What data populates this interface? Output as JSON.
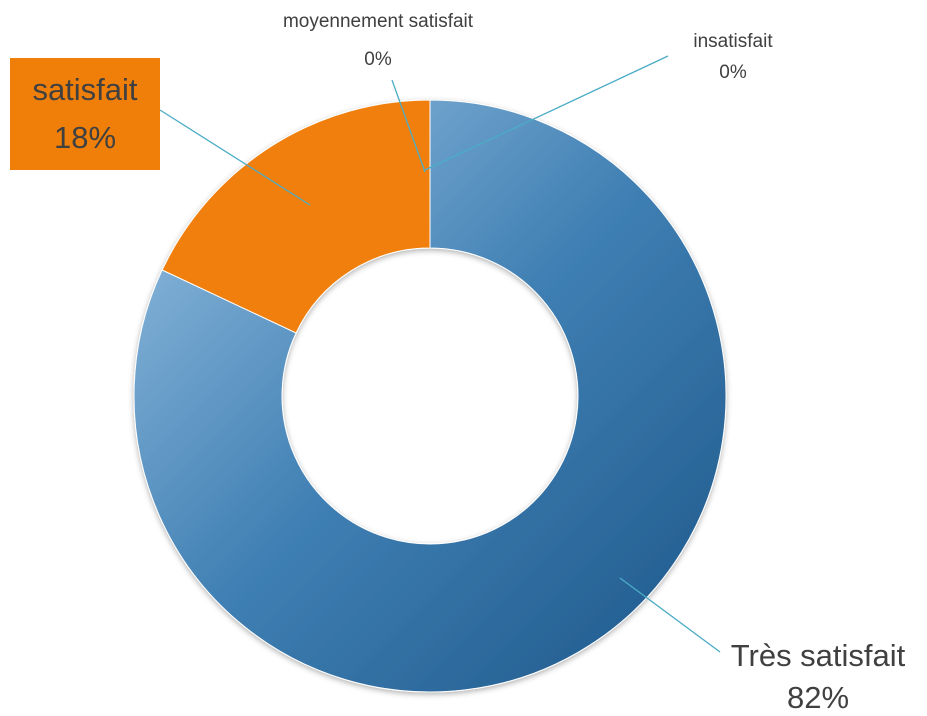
{
  "chart_data": {
    "type": "pie",
    "categories": [
      "Très satisfait",
      "satisfait",
      "moyennement satisfait",
      "insatisfait"
    ],
    "values": [
      82,
      18,
      0,
      0
    ],
    "value_labels": [
      "82%",
      "18%",
      "0%",
      "0%"
    ],
    "colors": [
      "#2e6f9e",
      "#f07f09",
      "#a5a5a5",
      "#ffc000"
    ]
  }
}
